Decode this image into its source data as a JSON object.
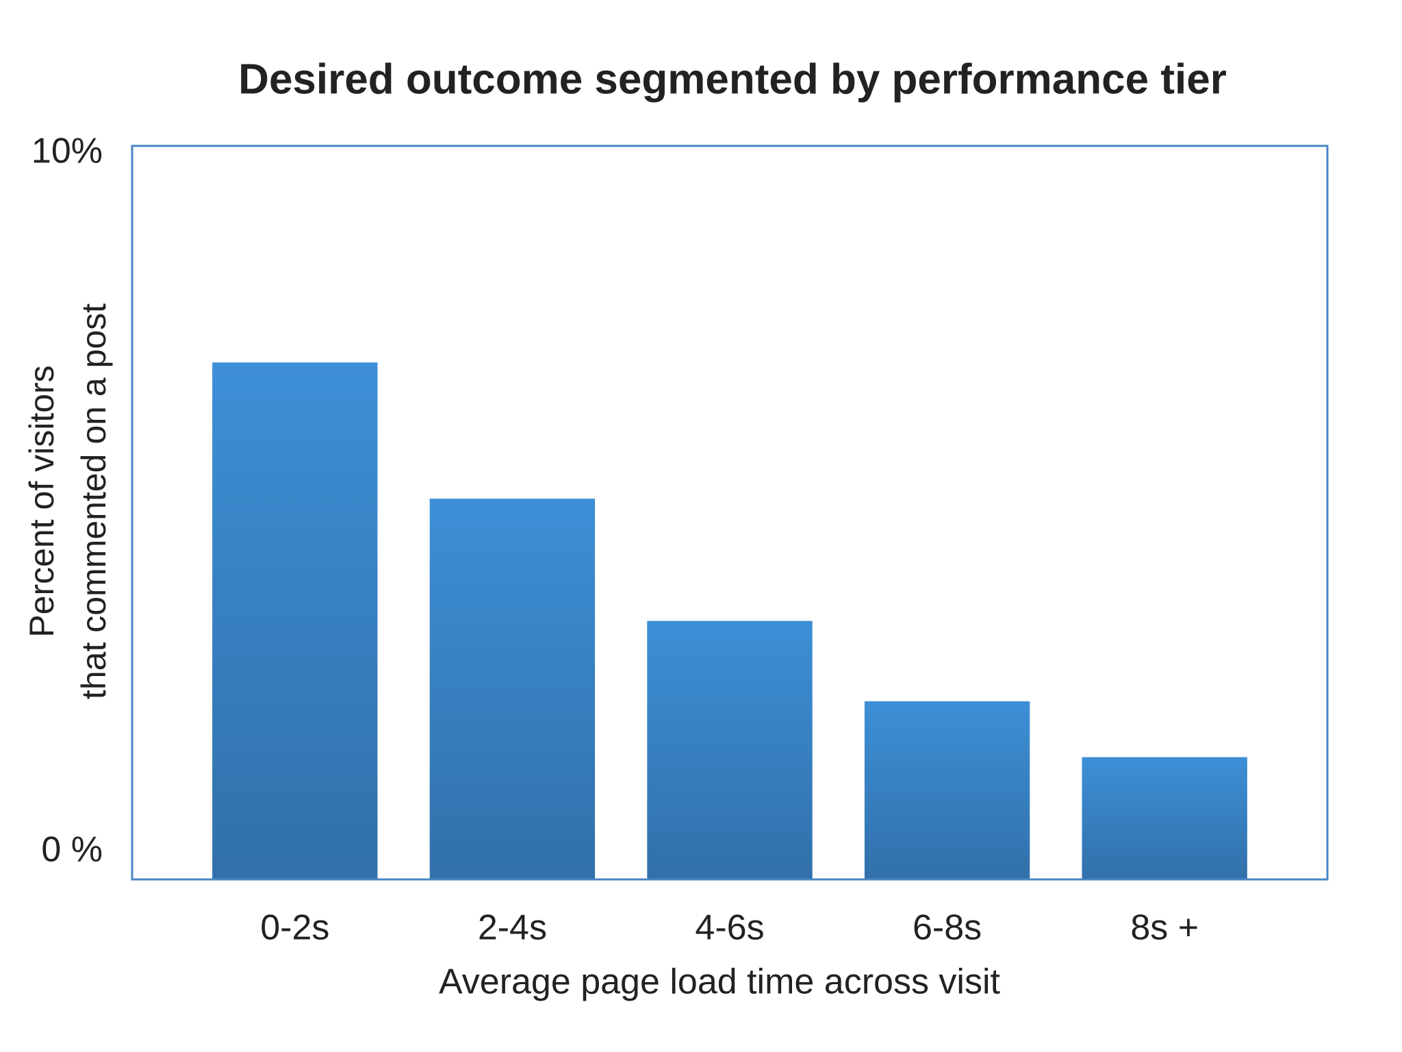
{
  "chart_data": {
    "type": "bar",
    "title": "Desired outcome segmented by performance tier",
    "categories": [
      "0-2s",
      "2-4s",
      "4-6s",
      "6-8s",
      "8s +"
    ],
    "values": [
      7.4,
      5.45,
      3.7,
      2.55,
      1.75
    ],
    "color": "#3d8fd6",
    "x_label": "Average page load time across visit",
    "y_label": [
      "Percent of visitors",
      "that commented on a post"
    ],
    "ylim": [
      0,
      10.5
    ],
    "yticks": [
      {
        "value": 0,
        "label": "0 %"
      },
      {
        "value": 10,
        "label": "10%"
      }
    ],
    "grid": false
  }
}
